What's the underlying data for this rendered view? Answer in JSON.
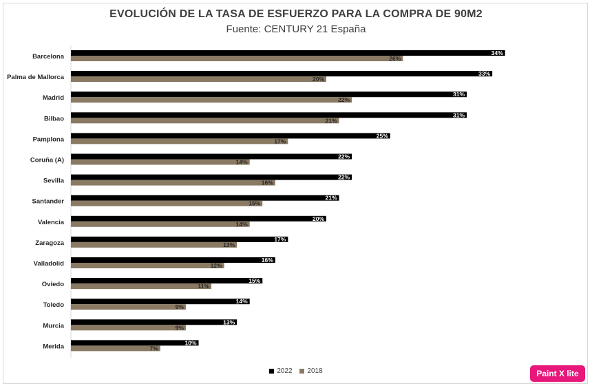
{
  "chart_data": {
    "type": "bar",
    "orientation": "horizontal",
    "title": "EVOLUCIÓN DE LA TASA DE ESFUERZO PARA LA COMPRA DE 90M2",
    "subtitle": "Fuente: CENTURY 21 España",
    "categories": [
      "Barcelona",
      "Palma de Mallorca",
      "Madrid",
      "Bilbao",
      "Pamplona",
      "Coruña (A)",
      "Sevilla",
      "Santander",
      "Valencia",
      "Zaragoza",
      "Valladolid",
      "Oviedo",
      "Toledo",
      "Murcia",
      "Merida"
    ],
    "series": [
      {
        "name": "2022",
        "color": "#000000",
        "values": [
          34,
          33,
          31,
          31,
          25,
          22,
          22,
          21,
          20,
          17,
          16,
          15,
          14,
          13,
          10
        ],
        "labels": [
          "34%",
          "33%",
          "31%",
          "31%",
          "25%",
          "22%",
          "22%",
          "21%",
          "20%",
          "17%",
          "16%",
          "15%",
          "14%",
          "13%",
          "10%"
        ]
      },
      {
        "name": "2018",
        "color": "#8a7a63",
        "values": [
          26,
          20,
          22,
          21,
          17,
          14,
          16,
          15,
          14,
          13,
          12,
          11,
          9,
          9,
          7
        ],
        "labels": [
          "26%",
          "20%",
          "22%",
          "21%",
          "17%",
          "14%",
          "16%",
          "15%",
          "14%",
          "13%",
          "12%",
          "11%",
          "9%",
          "9%",
          "7%"
        ]
      }
    ],
    "xlim": [
      0,
      35
    ],
    "grid": false,
    "legend": "bottom"
  },
  "badge": {
    "text": "Paint X lite"
  }
}
